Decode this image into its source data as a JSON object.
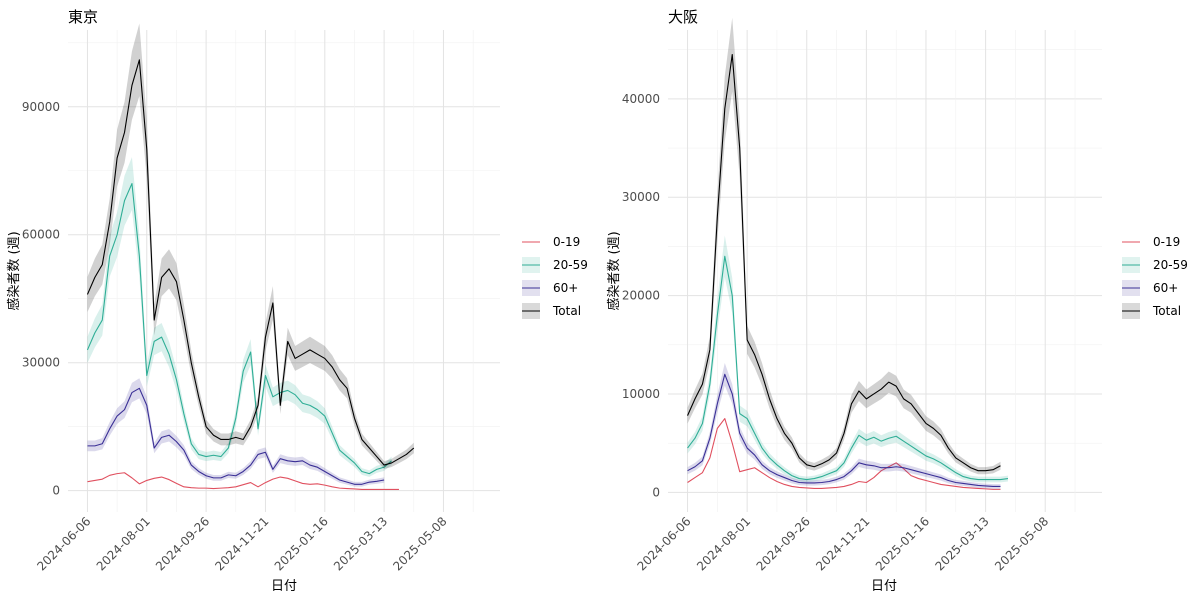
{
  "chart_data": [
    {
      "type": "line",
      "title": "東京",
      "xlabel": "日付",
      "ylabel": "感染者数 (週)",
      "x_tick_labels": [
        "2024-06-06",
        "2024-08-01",
        "2024-09-26",
        "2024-11-21",
        "2025-01-16",
        "2025-03-13",
        "2025-05-08"
      ],
      "x_start": "2024-06-06",
      "x_end": "2025-06-12",
      "x_step_days": 7,
      "y_ticks": [
        0,
        30000,
        60000,
        90000
      ],
      "y_tick_labels": [
        "0",
        "30000",
        "60000",
        "90000"
      ],
      "ylim": [
        -5000,
        108000
      ],
      "grid": true,
      "legend_position": "right",
      "series": [
        {
          "name": "0-19",
          "color": "#E0505F",
          "band": false,
          "values": [
            2100,
            2400,
            2700,
            3600,
            4000,
            4200,
            3000,
            1600,
            2400,
            2900,
            3200,
            2600,
            1700,
            900,
            700,
            600,
            600,
            500,
            600,
            700,
            900,
            1400,
            1900,
            900,
            1900,
            2700,
            3200,
            2900,
            2300,
            1700,
            1500,
            1600,
            1300,
            900,
            600,
            500,
            400,
            300,
            300,
            300,
            300,
            300,
            300
          ]
        },
        {
          "name": "20-59",
          "color": "#2FAE96",
          "band": true,
          "values": [
            33000,
            37000,
            40000,
            55000,
            60000,
            68000,
            72000,
            55000,
            27000,
            35000,
            36000,
            32000,
            26000,
            18000,
            11000,
            8500,
            8000,
            8300,
            8000,
            10000,
            17000,
            28000,
            32500,
            14500,
            27000,
            22000,
            23000,
            23500,
            22500,
            20500,
            20000,
            19000,
            17500,
            13500,
            9500,
            8000,
            6500,
            4500,
            4000,
            5000,
            5500,
            7000
          ]
        },
        {
          "name": "60+",
          "color": "#3A2F96",
          "band": true,
          "values": [
            10500,
            10500,
            11000,
            14500,
            17500,
            19000,
            23000,
            24000,
            20000,
            10000,
            12500,
            13000,
            11500,
            9500,
            6000,
            4500,
            3500,
            3000,
            3000,
            3700,
            3500,
            4500,
            6000,
            8500,
            9000,
            5000,
            7500,
            7000,
            6800,
            7000,
            6000,
            5500,
            4500,
            3500,
            2500,
            2000,
            1500,
            1500,
            2000,
            2200,
            2500
          ]
        },
        {
          "name": "Total",
          "color": "#000000",
          "band": true,
          "values": [
            46000,
            50000,
            53000,
            63000,
            78000,
            84000,
            95000,
            101000,
            80000,
            40000,
            50000,
            52000,
            49000,
            40000,
            30000,
            22000,
            15000,
            13000,
            12000,
            12000,
            12500,
            12000,
            15000,
            20000,
            36000,
            44000,
            20000,
            35000,
            31000,
            32000,
            33000,
            32000,
            31000,
            29000,
            26000,
            24000,
            17000,
            12000,
            10000,
            8000,
            6000,
            6500,
            7500,
            8500,
            10000
          ]
        }
      ]
    },
    {
      "type": "line",
      "title": "大阪",
      "xlabel": "日付",
      "ylabel": "感染者数 (週)",
      "x_tick_labels": [
        "2024-06-06",
        "2024-08-01",
        "2024-09-26",
        "2024-11-21",
        "2025-01-16",
        "2025-03-13",
        "2025-05-08"
      ],
      "x_start": "2024-06-06",
      "x_end": "2025-06-12",
      "x_step_days": 7,
      "y_ticks": [
        0,
        10000,
        20000,
        30000,
        40000
      ],
      "y_tick_labels": [
        "0",
        "10000",
        "20000",
        "30000",
        "40000"
      ],
      "ylim": [
        -2000,
        47000
      ],
      "grid": true,
      "legend_position": "right",
      "series": [
        {
          "name": "0-19",
          "color": "#E0505F",
          "band": false,
          "values": [
            1000,
            1500,
            2000,
            3500,
            6500,
            7500,
            5000,
            2100,
            2300,
            2500,
            2000,
            1500,
            1100,
            800,
            600,
            500,
            450,
            400,
            400,
            450,
            500,
            600,
            800,
            1100,
            1000,
            1500,
            2200,
            2600,
            3000,
            2400,
            1700,
            1400,
            1200,
            1000,
            800,
            700,
            600,
            500,
            450,
            400,
            350,
            300,
            300
          ]
        },
        {
          "name": "20-59",
          "color": "#2FAE96",
          "band": true,
          "values": [
            4500,
            5500,
            7000,
            11000,
            18000,
            24000,
            20000,
            8000,
            7500,
            6000,
            4500,
            3500,
            2800,
            2200,
            1700,
            1400,
            1300,
            1400,
            1600,
            1900,
            2200,
            3000,
            4500,
            5800,
            5300,
            5600,
            5200,
            5500,
            5700,
            5200,
            4700,
            4200,
            3700,
            3400,
            3000,
            2500,
            2000,
            1600,
            1400,
            1300,
            1300,
            1300,
            1300,
            1400
          ]
        },
        {
          "name": "60+",
          "color": "#3A2F96",
          "band": true,
          "values": [
            2200,
            2600,
            3200,
            5500,
            9000,
            12000,
            10000,
            6000,
            4500,
            3800,
            2800,
            2200,
            1800,
            1500,
            1200,
            1000,
            950,
            950,
            1000,
            1100,
            1300,
            1600,
            2200,
            3000,
            2800,
            2700,
            2500,
            2500,
            2600,
            2500,
            2300,
            2100,
            1900,
            1700,
            1500,
            1200,
            1000,
            900,
            800,
            700,
            650,
            600,
            600
          ]
        },
        {
          "name": "Total",
          "color": "#000000",
          "band": true,
          "values": [
            7800,
            9500,
            11000,
            14500,
            28000,
            39000,
            44500,
            35000,
            15500,
            14000,
            12000,
            9500,
            7500,
            6000,
            5000,
            3500,
            2800,
            2600,
            2900,
            3300,
            4000,
            6000,
            9000,
            10300,
            9500,
            10000,
            10500,
            11200,
            10800,
            9500,
            9000,
            8000,
            7000,
            6500,
            5800,
            4500,
            3500,
            3000,
            2500,
            2200,
            2200,
            2300,
            2700
          ]
        }
      ]
    }
  ]
}
